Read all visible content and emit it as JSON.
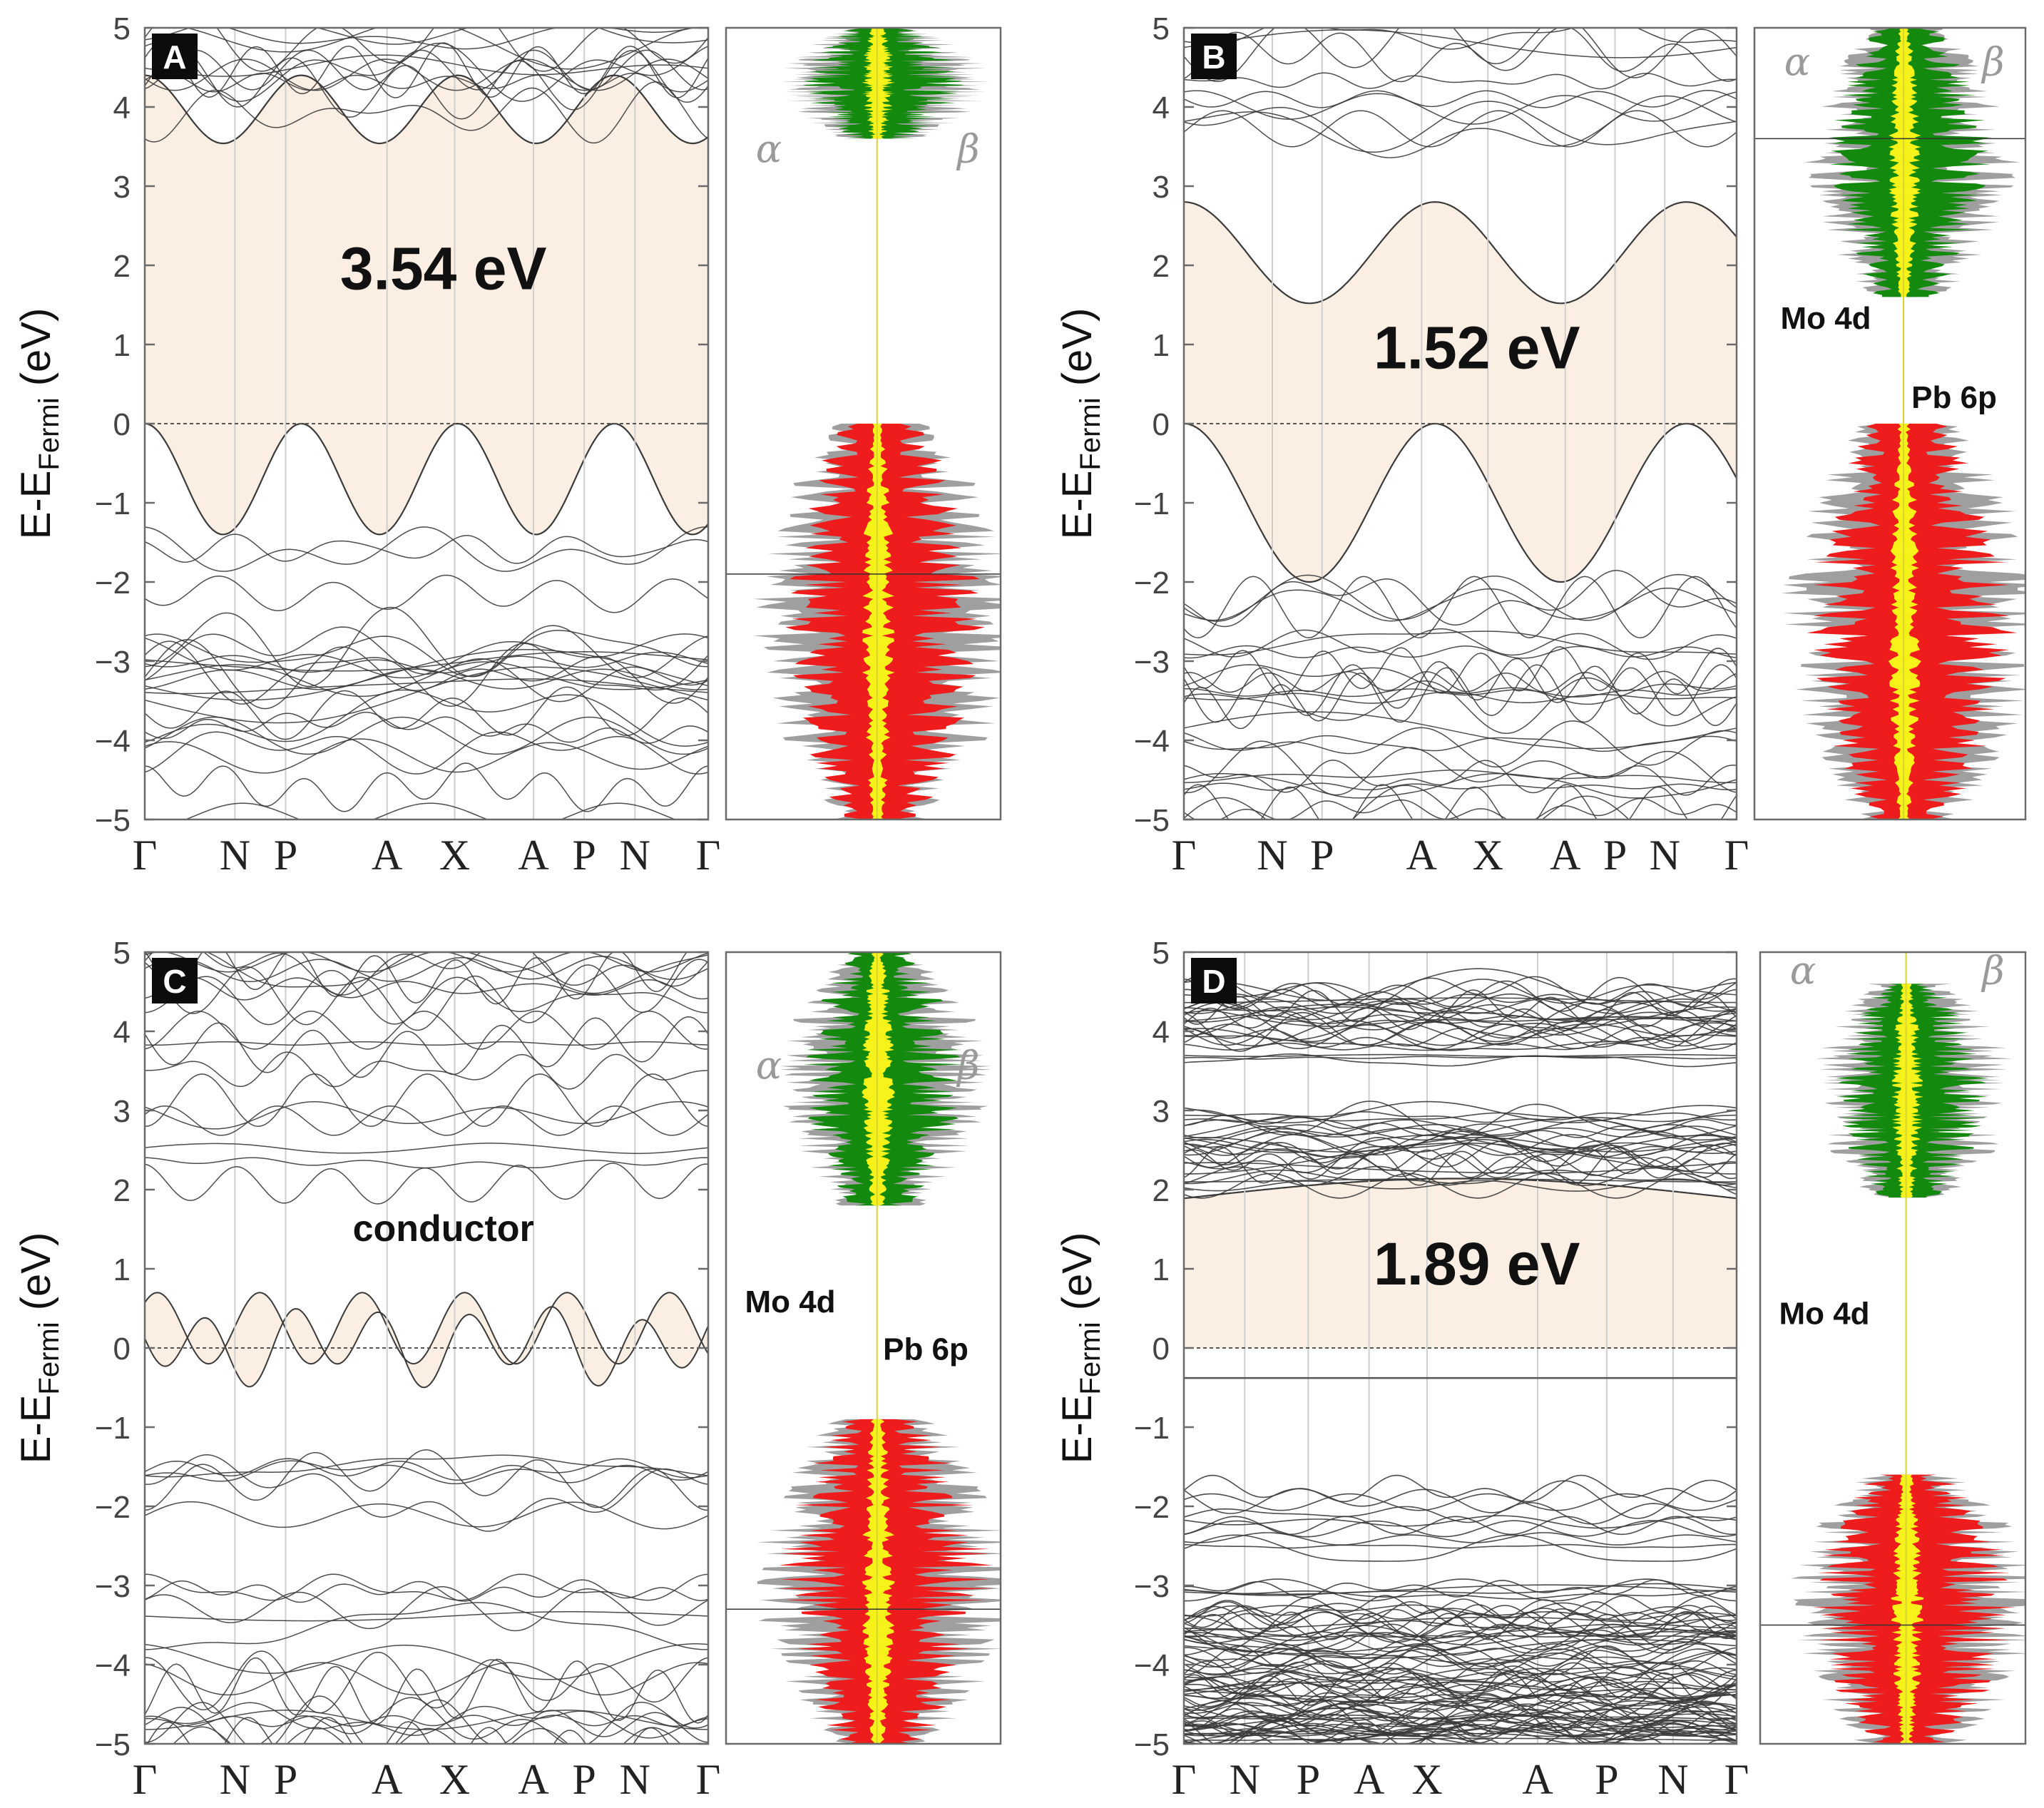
{
  "figure": {
    "y_axis_label": "E-E",
    "y_axis_label_subscript": "Fermi",
    "y_axis_unit": " (eV)",
    "spin_up_symbol": "α",
    "spin_down_symbol": "β"
  },
  "colors": {
    "gap_fill": "#fbeee2",
    "band_line": "#3a3a3a",
    "dos_gray": "#9f9f9f",
    "dos_green": "#138a0e",
    "dos_red": "#ee1c1c",
    "dos_yellow": "#f6f21a",
    "label_box": "#0c0c0c"
  },
  "chart_data": [
    {
      "type": "line",
      "panel": "A",
      "title": "",
      "xlabel": "",
      "ylabel": "E-EFermi (eV)",
      "ylim": [
        -5,
        5
      ],
      "yticks": [
        -5,
        -4,
        -3,
        -2,
        -1,
        0,
        1,
        2,
        3,
        4,
        5
      ],
      "k_labels": [
        "Γ",
        "N",
        "P",
        "A",
        "X",
        "A",
        "P",
        "N",
        "Γ"
      ],
      "gap_label": "3.54 eV",
      "annotations": [],
      "vbm_eV": 0.0,
      "cbm_eV": 3.54,
      "valence_edge_min_eV": -1.4,
      "conduction_edge_max_eV": 4.4,
      "dos": {
        "green_range_eV": [
          3.6,
          5.0
        ],
        "red_range_eV": [
          -5.0,
          0.0
        ],
        "peak_eV": -1.9
      }
    },
    {
      "type": "line",
      "panel": "B",
      "title": "",
      "xlabel": "",
      "ylabel": "E-EFermi (eV)",
      "ylim": [
        -5,
        5
      ],
      "yticks": [
        -5,
        -4,
        -3,
        -2,
        -1,
        0,
        1,
        2,
        3,
        4,
        5
      ],
      "k_labels": [
        "Γ",
        "N",
        "P",
        "A",
        "X",
        "A",
        "P",
        "N",
        "Γ"
      ],
      "gap_label": "1.52 eV",
      "annotations": [
        "Mo 4d",
        "Pb 6p"
      ],
      "vbm_eV": 0.0,
      "cbm_eV": 1.52,
      "valence_edge_min_eV": -2.0,
      "conduction_edge_max_eV": 2.8,
      "dos": {
        "green_range_eV": [
          1.6,
          5.0
        ],
        "red_range_eV": [
          -5.0,
          0.0
        ],
        "peak_eV": 3.6
      }
    },
    {
      "type": "line",
      "panel": "C",
      "title": "",
      "xlabel": "",
      "ylabel": "E-EFermi (eV)",
      "ylim": [
        -5,
        5
      ],
      "yticks": [
        -5,
        -4,
        -3,
        -2,
        -1,
        0,
        1,
        2,
        3,
        4,
        5
      ],
      "k_labels": [
        "Γ",
        "N",
        "P",
        "A",
        "X",
        "A",
        "P",
        "N",
        "Γ"
      ],
      "gap_label": "conductor",
      "annotations": [
        "Mo 4d",
        "Pb 6p"
      ],
      "fermi_crossing_band_range_eV": [
        -0.45,
        0.95
      ],
      "dos": {
        "green_range_eV": [
          1.8,
          5.0
        ],
        "red_range_eV": [
          -5.0,
          -0.9
        ],
        "peak_eV": -3.3
      }
    },
    {
      "type": "line",
      "panel": "D",
      "title": "",
      "xlabel": "",
      "ylabel": "E-EFermi (eV)",
      "ylim": [
        -5,
        5
      ],
      "yticks": [
        -5,
        -4,
        -3,
        -2,
        -1,
        0,
        1,
        2,
        3,
        4,
        5
      ],
      "k_labels": [
        "Γ",
        "N",
        "P",
        "A",
        "X",
        "A",
        "P",
        "N",
        "Γ"
      ],
      "gap_label": "1.89 eV",
      "annotations": [
        "Mo 4d"
      ],
      "vbm_eV": 0.0,
      "cbm_eV": 1.89,
      "flat_band_eV": -0.38,
      "dos": {
        "green_range_eV": [
          1.9,
          4.6
        ],
        "red_range_eV": [
          -5.0,
          -1.6
        ],
        "peak_eV": -3.5
      }
    }
  ]
}
